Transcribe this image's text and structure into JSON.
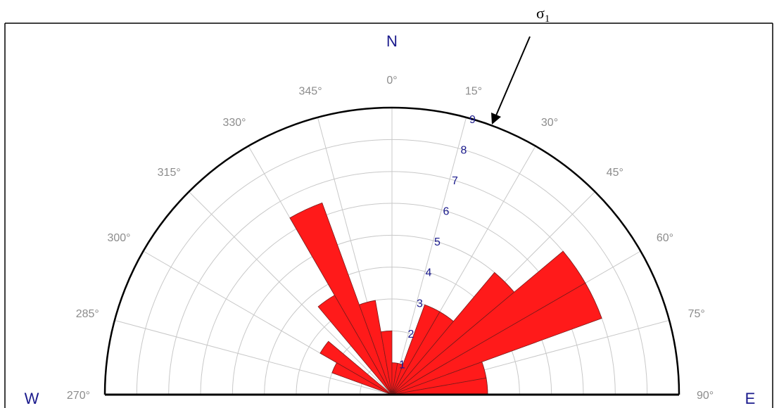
{
  "annotation": {
    "label": "σ1",
    "base": "σ",
    "sub": "1"
  },
  "chart_data": {
    "type": "rose",
    "subtype": "half-circle rose diagram (0°–90°–270°)",
    "bin_size_deg": 10,
    "radial_range": [
      0,
      9
    ],
    "radial_ticks": [
      "1",
      "2",
      "3",
      "4",
      "5",
      "6",
      "7",
      "8",
      "9"
    ],
    "angle_ticks": [
      "270°",
      "285°",
      "300°",
      "315°",
      "330°",
      "345°",
      "0°",
      "15°",
      "30°",
      "45°",
      "60°",
      "75°",
      "90°"
    ],
    "cardinal_labels": {
      "north": "N",
      "west": "W",
      "east": "E"
    },
    "bar_color": "#ff1a1a",
    "petals": [
      {
        "start": 290,
        "end": 300,
        "value": 2.0
      },
      {
        "start": 300,
        "end": 310,
        "value": 2.6
      },
      {
        "start": 320,
        "end": 330,
        "value": 3.6
      },
      {
        "start": 330,
        "end": 340,
        "value": 6.4
      },
      {
        "start": 340,
        "end": 350,
        "value": 3.0
      },
      {
        "start": 350,
        "end": 360,
        "value": 2.0
      },
      {
        "start": 0,
        "end": 10,
        "value": 1.0
      },
      {
        "start": 10,
        "end": 20,
        "value": 1.0
      },
      {
        "start": 20,
        "end": 30,
        "value": 3.0
      },
      {
        "start": 30,
        "end": 40,
        "value": 3.0
      },
      {
        "start": 40,
        "end": 50,
        "value": 5.0
      },
      {
        "start": 50,
        "end": 60,
        "value": 7.0
      },
      {
        "start": 60,
        "end": 70,
        "value": 7.0
      },
      {
        "start": 70,
        "end": 80,
        "value": 3.0
      },
      {
        "start": 80,
        "end": 90,
        "value": 3.0
      }
    ],
    "grid": true
  }
}
